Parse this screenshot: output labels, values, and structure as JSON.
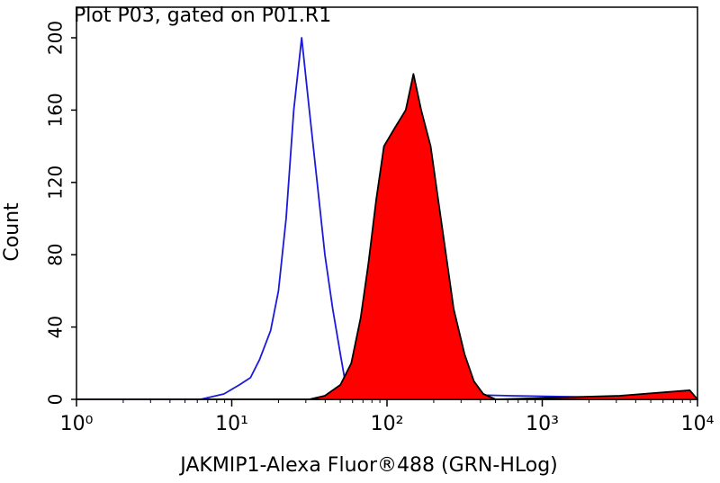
{
  "chart_data": {
    "type": "histogram",
    "title": "Plot P03, gated on P01.R1",
    "x_label": "JAKMIP1-Alexa Fluor®488 (GRN-HLog)",
    "y_label": "Count",
    "xscale": "log",
    "xlim": [
      1,
      10000
    ],
    "ylim": [
      0,
      200
    ],
    "xticks": [
      {
        "value": 1,
        "label": "10⁰"
      },
      {
        "value": 10,
        "label": "10¹"
      },
      {
        "value": 100,
        "label": "10²"
      },
      {
        "value": 1000,
        "label": "10³"
      },
      {
        "value": 10000,
        "label": "10⁴"
      }
    ],
    "yticks": [
      0,
      40,
      80,
      120,
      160,
      200
    ],
    "grid": false,
    "series": [
      {
        "color": "#1a1adb",
        "filled": false,
        "x": [
          1,
          6.3,
          8.9,
          11.2,
          13.2,
          15.1,
          17.8,
          20,
          22.4,
          25.1,
          28.2,
          31.6,
          35.5,
          39.8,
          44.7,
          50.1,
          55,
          70.8,
          200,
          631,
          3162,
          10000
        ],
        "values": [
          0,
          0,
          3,
          8,
          12,
          22,
          38,
          60,
          100,
          160,
          200,
          160,
          120,
          80,
          50,
          25,
          5,
          2,
          3,
          2,
          1,
          0
        ]
      },
      {
        "color": "#ff0000",
        "filled": true,
        "x": [
          1,
          31.6,
          39.8,
          50.1,
          58.9,
          67.6,
          75.9,
          85.1,
          95.5,
          112,
          132,
          148,
          166,
          191,
          214,
          240,
          269,
          316,
          363,
          417,
          501,
          3162,
          8913,
          10000
        ],
        "values": [
          0,
          0,
          2,
          8,
          20,
          45,
          75,
          110,
          140,
          150,
          160,
          180,
          160,
          140,
          110,
          80,
          50,
          25,
          10,
          3,
          0,
          2,
          5,
          0
        ]
      }
    ]
  }
}
